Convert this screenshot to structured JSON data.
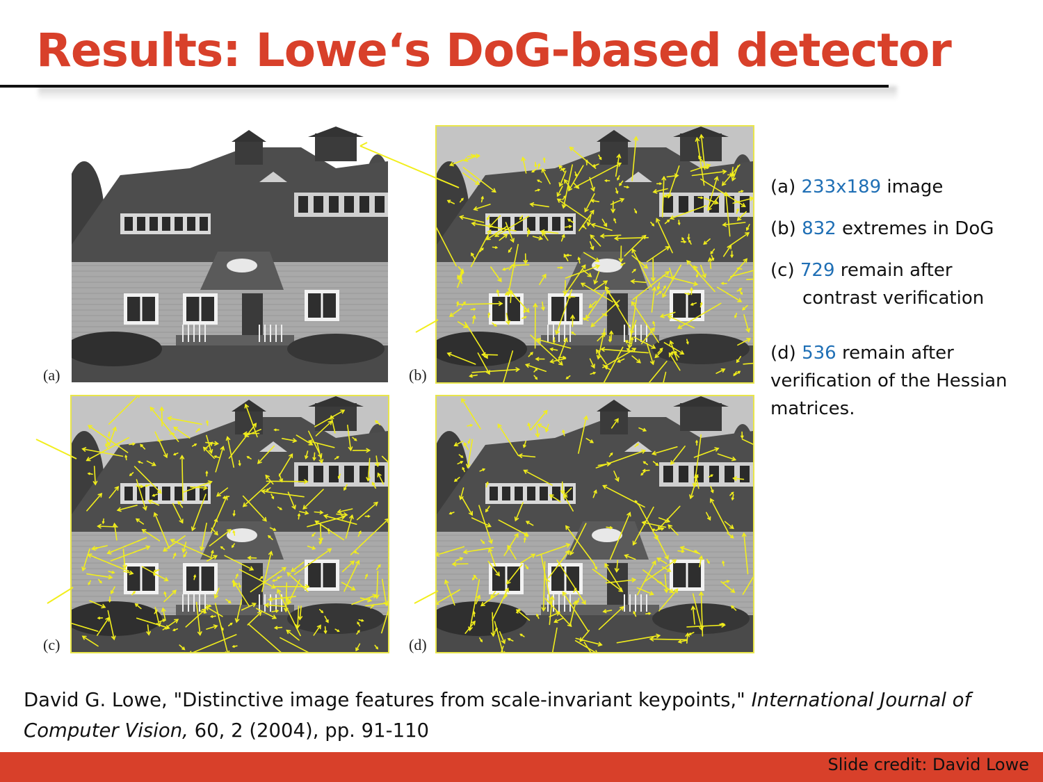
{
  "title": "Results: Lowe‘s DoG-based detector",
  "panels": [
    {
      "label": "(a)"
    },
    {
      "label": "(b)"
    },
    {
      "label": "(c)"
    },
    {
      "label": "(d)"
    }
  ],
  "captions": {
    "a": {
      "prefix": "(a) ",
      "value": "233x189",
      "suffix": " image"
    },
    "b": {
      "prefix": "(b) ",
      "value": "832",
      "suffix": " extremes in DoG"
    },
    "c": {
      "prefix": "(c) ",
      "value": "729",
      "suffix": " remain after",
      "line2": "contrast verification"
    },
    "d": {
      "prefix": "(d) ",
      "value": "536",
      "suffix": " remain after",
      "line2": "verification of the Hessian",
      "line3": "matrices."
    }
  },
  "citation": {
    "part1": "David G. Lowe, \"Distinctive image features from scale-invariant keypoints,\" ",
    "journal": "International Journal of Computer Vision,",
    "part2": " 60, 2 (2004), pp. 91-110"
  },
  "footer": {
    "credit": "Slide credit: David Lowe"
  },
  "colors": {
    "title": "#d8402a",
    "footer_bar": "#d8402a",
    "number_highlight": "#1f6fb5",
    "keypoint_arrow": "#f2ee1c"
  }
}
